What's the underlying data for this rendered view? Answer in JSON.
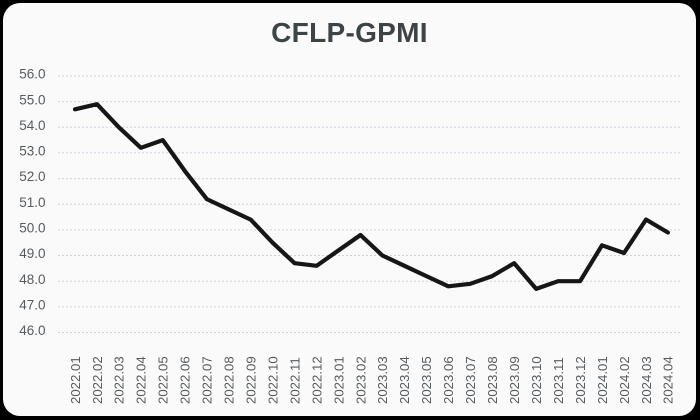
{
  "chart_data": {
    "type": "line",
    "title": "CFLP-GPMI",
    "categories": [
      "2022.01",
      "2022.02",
      "2022.03",
      "2022.04",
      "2022.05",
      "2022.06",
      "2022.07",
      "2022.08",
      "2022.09",
      "2022.10",
      "2022.11",
      "2022.12",
      "2023.01",
      "2023.02",
      "2023.03",
      "2023.04",
      "2023.05",
      "2023.06",
      "2023.07",
      "2023.08",
      "2023.09",
      "2023.10",
      "2023.11",
      "2023.12",
      "2024.01",
      "2024.02",
      "2024.03",
      "2024.04"
    ],
    "series": [
      {
        "name": "CFLP-GPMI",
        "values": [
          54.7,
          54.9,
          54.0,
          53.2,
          53.5,
          52.3,
          51.2,
          50.8,
          50.4,
          49.5,
          48.7,
          48.6,
          49.2,
          49.8,
          49.0,
          48.6,
          48.2,
          47.8,
          47.9,
          48.2,
          48.7,
          47.7,
          48.0,
          48.0,
          49.4,
          49.1,
          50.4,
          49.9
        ]
      }
    ],
    "xlabel": "",
    "ylabel": "",
    "ylim": [
      46.0,
      56.0
    ],
    "ytick_step": 1.0,
    "ytick_labels": [
      "56.0",
      "55.0",
      "54.0",
      "53.0",
      "52.0",
      "51.0",
      "50.0",
      "49.0",
      "48.0",
      "47.0",
      "46.0"
    ],
    "grid": "horizontal-dotted",
    "legend": "none",
    "colors": {
      "line": "#161616",
      "grid": "#c6d5dd",
      "tick_text": "#565b5f",
      "title_text": "#3d4447",
      "card_bg": "#fafafa",
      "frame_bg": "#000000"
    }
  }
}
